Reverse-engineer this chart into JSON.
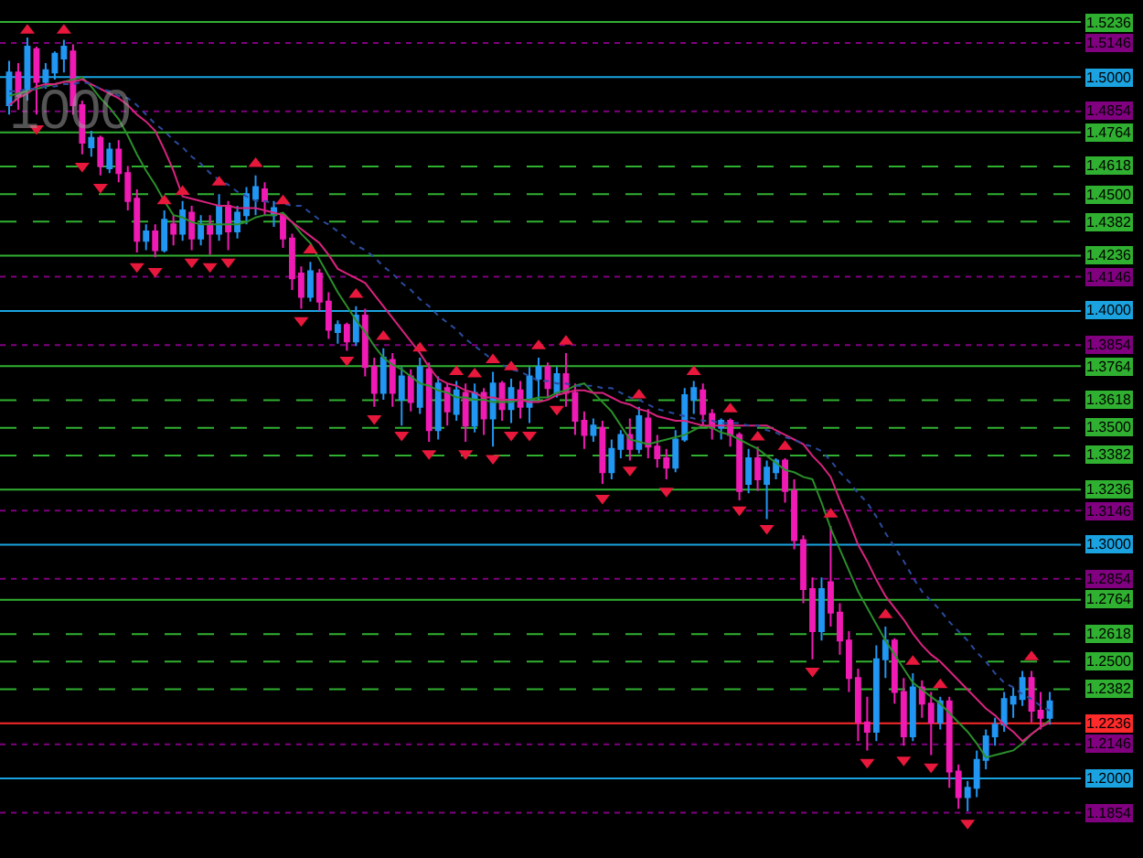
{
  "chart_data": {
    "type": "candlestick",
    "categories": [
      null,
      null,
      null,
      null,
      null,
      null,
      null,
      null,
      null,
      null,
      null,
      null,
      null,
      null,
      null,
      null,
      null,
      null,
      null,
      null,
      null,
      null,
      null,
      null,
      null,
      null,
      null,
      null,
      null,
      null,
      null,
      null,
      null,
      null,
      null,
      null,
      null,
      null,
      null,
      null,
      null,
      null,
      null,
      null,
      null,
      null,
      null,
      null,
      null,
      null,
      null,
      null,
      null,
      null,
      null,
      null,
      null,
      null,
      null,
      null,
      null,
      null,
      null,
      null,
      null,
      null,
      null,
      null,
      null,
      null,
      null,
      null,
      null,
      null,
      null,
      null,
      null,
      null,
      null,
      null,
      null,
      null,
      null,
      null,
      null,
      null,
      null,
      null,
      null,
      null,
      null,
      null,
      null,
      null,
      null,
      null,
      null,
      null,
      null,
      null,
      null,
      null,
      null,
      null,
      null,
      null,
      null,
      null,
      null,
      null,
      null,
      null,
      null,
      null,
      null
    ],
    "ohlc": [
      [
        1.488,
        1.507,
        1.484,
        1.502
      ],
      [
        1.502,
        1.506,
        1.486,
        1.492
      ],
      [
        1.494,
        1.517,
        1.49,
        1.513
      ],
      [
        1.512,
        1.513,
        1.484,
        1.498
      ],
      [
        1.498,
        1.506,
        1.495,
        1.503
      ],
      [
        1.502,
        1.511,
        1.499,
        1.51
      ],
      [
        1.508,
        1.516,
        1.502,
        1.513
      ],
      [
        1.511,
        1.514,
        1.484,
        1.488
      ],
      [
        1.488,
        1.49,
        1.467,
        1.472
      ],
      [
        1.47,
        1.477,
        1.466,
        1.474
      ],
      [
        1.474,
        1.475,
        1.458,
        1.462
      ],
      [
        1.461,
        1.472,
        1.459,
        1.469
      ],
      [
        1.469,
        1.473,
        1.455,
        1.459
      ],
      [
        1.459,
        1.462,
        1.443,
        1.447
      ],
      [
        1.448,
        1.452,
        1.425,
        1.43
      ],
      [
        1.43,
        1.437,
        1.426,
        1.434
      ],
      [
        1.434,
        1.437,
        1.423,
        1.426
      ],
      [
        1.426,
        1.443,
        1.425,
        1.439
      ],
      [
        1.437,
        1.441,
        1.428,
        1.433
      ],
      [
        1.433,
        1.447,
        1.43,
        1.443
      ],
      [
        1.442,
        1.445,
        1.426,
        1.431
      ],
      [
        1.431,
        1.441,
        1.428,
        1.437
      ],
      [
        1.437,
        1.441,
        1.424,
        1.433
      ],
      [
        1.433,
        1.45,
        1.43,
        1.445
      ],
      [
        1.445,
        1.447,
        1.426,
        1.434
      ],
      [
        1.434,
        1.445,
        1.431,
        1.442
      ],
      [
        1.441,
        1.453,
        1.437,
        1.45
      ],
      [
        1.448,
        1.458,
        1.441,
        1.453
      ],
      [
        1.452,
        1.455,
        1.441,
        1.447
      ],
      [
        1.441,
        1.447,
        1.436,
        1.444
      ],
      [
        1.441,
        1.442,
        1.427,
        1.431
      ],
      [
        1.431,
        1.433,
        1.409,
        1.414
      ],
      [
        1.416,
        1.419,
        1.401,
        1.406
      ],
      [
        1.406,
        1.421,
        1.404,
        1.417
      ],
      [
        1.416,
        1.418,
        1.4,
        1.404
      ],
      [
        1.404,
        1.408,
        1.388,
        1.392
      ],
      [
        1.391,
        1.396,
        1.386,
        1.394
      ],
      [
        1.394,
        1.395,
        1.383,
        1.387
      ],
      [
        1.387,
        1.402,
        1.385,
        1.398
      ],
      [
        1.398,
        1.401,
        1.372,
        1.376
      ],
      [
        1.376,
        1.38,
        1.359,
        1.365
      ],
      [
        1.365,
        1.384,
        1.362,
        1.38
      ],
      [
        1.379,
        1.382,
        1.359,
        1.365
      ],
      [
        1.362,
        1.376,
        1.351,
        1.372
      ],
      [
        1.372,
        1.375,
        1.357,
        1.361
      ],
      [
        1.359,
        1.38,
        1.356,
        1.376
      ],
      [
        1.375,
        1.378,
        1.344,
        1.349
      ],
      [
        1.349,
        1.372,
        1.345,
        1.369
      ],
      [
        1.367,
        1.369,
        1.351,
        1.357
      ],
      [
        1.356,
        1.37,
        1.353,
        1.366
      ],
      [
        1.365,
        1.369,
        1.344,
        1.351
      ],
      [
        1.351,
        1.369,
        1.348,
        1.365
      ],
      [
        1.365,
        1.367,
        1.347,
        1.354
      ],
      [
        1.354,
        1.374,
        1.342,
        1.369
      ],
      [
        1.369,
        1.37,
        1.353,
        1.358
      ],
      [
        1.358,
        1.371,
        1.352,
        1.367
      ],
      [
        1.366,
        1.37,
        1.354,
        1.359
      ],
      [
        1.359,
        1.376,
        1.352,
        1.372
      ],
      [
        1.371,
        1.38,
        1.362,
        1.376
      ],
      [
        1.376,
        1.378,
        1.363,
        1.367
      ],
      [
        1.365,
        1.376,
        1.363,
        1.373
      ],
      [
        1.373,
        1.382,
        1.359,
        1.365
      ],
      [
        1.365,
        1.369,
        1.347,
        1.353
      ],
      [
        1.353,
        1.357,
        1.341,
        1.347
      ],
      [
        1.347,
        1.354,
        1.344,
        1.351
      ],
      [
        1.35,
        1.353,
        1.326,
        1.331
      ],
      [
        1.331,
        1.345,
        1.328,
        1.341
      ],
      [
        1.341,
        1.349,
        1.337,
        1.347
      ],
      [
        1.347,
        1.354,
        1.336,
        1.341
      ],
      [
        1.341,
        1.359,
        1.339,
        1.355
      ],
      [
        1.354,
        1.358,
        1.337,
        1.342
      ],
      [
        1.342,
        1.347,
        1.333,
        1.337
      ],
      [
        1.337,
        1.341,
        1.328,
        1.333
      ],
      [
        1.333,
        1.349,
        1.331,
        1.345
      ],
      [
        1.345,
        1.367,
        1.344,
        1.364
      ],
      [
        1.362,
        1.37,
        1.356,
        1.367
      ],
      [
        1.366,
        1.369,
        1.351,
        1.356
      ],
      [
        1.356,
        1.358,
        1.345,
        1.35
      ],
      [
        1.35,
        1.354,
        1.345,
        1.353
      ],
      [
        1.353,
        1.354,
        1.342,
        1.347
      ],
      [
        1.347,
        1.348,
        1.319,
        1.323
      ],
      [
        1.326,
        1.341,
        1.322,
        1.337
      ],
      [
        1.337,
        1.342,
        1.323,
        1.328
      ],
      [
        1.326,
        1.336,
        1.311,
        1.333
      ],
      [
        1.331,
        1.337,
        1.328,
        1.336
      ],
      [
        1.336,
        1.337,
        1.318,
        1.323
      ],
      [
        1.323,
        1.328,
        1.298,
        1.302
      ],
      [
        1.302,
        1.304,
        1.275,
        1.281
      ],
      [
        1.281,
        1.286,
        1.251,
        1.263
      ],
      [
        1.263,
        1.286,
        1.259,
        1.281
      ],
      [
        1.284,
        1.308,
        1.265,
        1.271
      ],
      [
        1.271,
        1.275,
        1.253,
        1.259
      ],
      [
        1.259,
        1.263,
        1.237,
        1.243
      ],
      [
        1.243,
        1.247,
        1.216,
        1.224
      ],
      [
        1.224,
        1.235,
        1.212,
        1.22
      ],
      [
        1.22,
        1.257,
        1.216,
        1.251
      ],
      [
        1.251,
        1.265,
        1.243,
        1.259
      ],
      [
        1.259,
        1.26,
        1.232,
        1.237
      ],
      [
        1.237,
        1.243,
        1.214,
        1.218
      ],
      [
        1.218,
        1.245,
        1.216,
        1.239
      ],
      [
        1.239,
        1.242,
        1.226,
        1.232
      ],
      [
        1.232,
        1.237,
        1.21,
        1.224
      ],
      [
        1.224,
        1.235,
        1.221,
        1.233
      ],
      [
        1.233,
        1.235,
        1.196,
        1.203
      ],
      [
        1.203,
        1.206,
        1.187,
        1.192
      ],
      [
        1.192,
        1.199,
        1.186,
        1.196
      ],
      [
        1.196,
        1.212,
        1.192,
        1.208
      ],
      [
        1.208,
        1.221,
        1.204,
        1.218
      ],
      [
        1.218,
        1.226,
        1.214,
        1.223
      ],
      [
        1.223,
        1.237,
        1.22,
        1.234
      ],
      [
        1.232,
        1.239,
        1.226,
        1.235
      ],
      [
        1.234,
        1.246,
        1.231,
        1.243
      ],
      [
        1.243,
        1.246,
        1.224,
        1.229
      ],
      [
        1.229,
        1.237,
        1.221,
        1.226
      ],
      [
        1.226,
        1.237,
        1.223,
        1.233
      ]
    ],
    "colors": [
      "#2196f3",
      "#f01ab4",
      "#2196f3",
      "#f01ab4",
      "#2196f3",
      "#2196f3",
      "#2196f3",
      "#f01ab4",
      "#f01ab4",
      "#2196f3",
      "#f01ab4",
      "#2196f3",
      "#f01ab4",
      "#f01ab4",
      "#f01ab4",
      "#2196f3",
      "#f01ab4",
      "#2196f3",
      "#f01ab4",
      "#2196f3",
      "#f01ab4",
      "#2196f3",
      "#f01ab4",
      "#2196f3",
      "#f01ab4",
      "#2196f3",
      "#2196f3",
      "#2196f3",
      "#f01ab4",
      "#2196f3",
      "#f01ab4",
      "#f01ab4",
      "#f01ab4",
      "#2196f3",
      "#f01ab4",
      "#f01ab4",
      "#2196f3",
      "#f01ab4",
      "#2196f3",
      "#f01ab4",
      "#f01ab4",
      "#2196f3",
      "#f01ab4",
      "#2196f3",
      "#f01ab4",
      "#2196f3",
      "#f01ab4",
      "#2196f3",
      "#f01ab4",
      "#2196f3",
      "#f01ab4",
      "#2196f3",
      "#f01ab4",
      "#2196f3",
      "#f01ab4",
      "#2196f3",
      "#f01ab4",
      "#2196f3",
      "#2196f3",
      "#f01ab4",
      "#2196f3",
      "#f01ab4",
      "#f01ab4",
      "#f01ab4",
      "#2196f3",
      "#f01ab4",
      "#2196f3",
      "#2196f3",
      "#f01ab4",
      "#2196f3",
      "#f01ab4",
      "#f01ab4",
      "#f01ab4",
      "#2196f3",
      "#2196f3",
      "#2196f3",
      "#f01ab4",
      "#f01ab4",
      "#2196f3",
      "#f01ab4",
      "#f01ab4",
      "#2196f3",
      "#f01ab4",
      "#2196f3",
      "#2196f3",
      "#f01ab4",
      "#f01ab4",
      "#f01ab4",
      "#f01ab4",
      "#2196f3",
      "#f01ab4",
      "#f01ab4",
      "#f01ab4",
      "#f01ab4",
      "#f01ab4",
      "#2196f3",
      "#2196f3",
      "#f01ab4",
      "#f01ab4",
      "#2196f3",
      "#f01ab4",
      "#f01ab4",
      "#2196f3",
      "#f01ab4",
      "#f01ab4",
      "#2196f3",
      "#2196f3",
      "#2196f3",
      "#2196f3",
      "#2196f3",
      "#2196f3",
      "#2196f3",
      "#f01ab4",
      "#f01ab4",
      "#2196f3"
    ],
    "series": [
      {
        "type": "line",
        "color": "#2a8f2a",
        "values": [
          1.492,
          1.493,
          1.494,
          1.495,
          1.496,
          1.497,
          1.498,
          1.499,
          1.5,
          1.496,
          1.491,
          1.487,
          1.482,
          1.475,
          1.467,
          1.46,
          1.454,
          1.447,
          1.441,
          1.44,
          1.438,
          1.437,
          1.437,
          1.437,
          1.437,
          1.437,
          1.438,
          1.44,
          1.441,
          1.441,
          1.442,
          1.438,
          1.433,
          1.429,
          1.422,
          1.415,
          1.408,
          1.402,
          1.396,
          1.391,
          1.385,
          1.38,
          1.377,
          1.375,
          1.372,
          1.369,
          1.368,
          1.366,
          1.365,
          1.363,
          1.363,
          1.362,
          1.362,
          1.361,
          1.361,
          1.361,
          1.362,
          1.362,
          1.363,
          1.363,
          1.365,
          1.366,
          1.368,
          1.369,
          1.365,
          1.361,
          1.357,
          1.351,
          1.345,
          1.344,
          1.343,
          1.344,
          1.345,
          1.346,
          1.347,
          1.349,
          1.351,
          1.35,
          1.348,
          1.347,
          1.345,
          1.343,
          1.341,
          1.338,
          1.335,
          1.332,
          1.331,
          1.329,
          1.328,
          1.318,
          1.307,
          1.298,
          1.289,
          1.28,
          1.273,
          1.266,
          1.259,
          1.253,
          1.247,
          1.241,
          1.238,
          1.235,
          1.232,
          1.228,
          1.224,
          1.22,
          1.215,
          1.209,
          1.21,
          1.211,
          1.212,
          1.215,
          1.219,
          1.222,
          1.225
        ]
      },
      {
        "type": "line",
        "color": "#d8237e",
        "values": [
          1.488,
          1.491,
          1.493,
          1.496,
          1.497,
          1.497,
          1.498,
          1.498,
          1.499,
          1.497,
          1.495,
          1.493,
          1.491,
          1.488,
          1.484,
          1.481,
          1.477,
          1.469,
          1.46,
          1.449,
          1.448,
          1.447,
          1.446,
          1.445,
          1.445,
          1.444,
          1.444,
          1.444,
          1.443,
          1.442,
          1.441,
          1.438,
          1.435,
          1.432,
          1.429,
          1.424,
          1.418,
          1.416,
          1.414,
          1.412,
          1.407,
          1.402,
          1.397,
          1.392,
          1.387,
          1.382,
          1.376,
          1.371,
          1.369,
          1.368,
          1.366,
          1.365,
          1.363,
          1.363,
          1.362,
          1.362,
          1.362,
          1.361,
          1.361,
          1.362,
          1.364,
          1.365,
          1.366,
          1.366,
          1.365,
          1.365,
          1.363,
          1.361,
          1.36,
          1.358,
          1.357,
          1.355,
          1.354,
          1.353,
          1.353,
          1.352,
          1.351,
          1.351,
          1.351,
          1.351,
          1.351,
          1.351,
          1.351,
          1.351,
          1.349,
          1.347,
          1.345,
          1.343,
          1.338,
          1.334,
          1.329,
          1.319,
          1.31,
          1.3,
          1.293,
          1.285,
          1.278,
          1.273,
          1.268,
          1.262,
          1.257,
          1.253,
          1.25,
          1.246,
          1.242,
          1.238,
          1.234,
          1.23,
          1.227,
          1.223,
          1.22,
          1.216,
          1.219,
          1.222,
          1.224
        ]
      },
      {
        "type": "line",
        "color": "#2a4a9c",
        "line_style": "dotted",
        "values": [
          1.494,
          1.494,
          1.495,
          1.495,
          1.496,
          1.496,
          1.497,
          1.497,
          1.498,
          1.497,
          1.495,
          1.494,
          1.492,
          1.491,
          1.488,
          1.484,
          1.48,
          1.477,
          1.473,
          1.47,
          1.466,
          1.463,
          1.459,
          1.456,
          1.454,
          1.451,
          1.449,
          1.447,
          1.447,
          1.446,
          1.446,
          1.445,
          1.445,
          1.442,
          1.439,
          1.437,
          1.434,
          1.431,
          1.428,
          1.426,
          1.423,
          1.419,
          1.416,
          1.412,
          1.409,
          1.405,
          1.402,
          1.398,
          1.395,
          1.392,
          1.388,
          1.385,
          1.382,
          1.379,
          1.377,
          1.375,
          1.374,
          1.372,
          1.37,
          1.37,
          1.369,
          1.369,
          1.368,
          1.368,
          1.368,
          1.367,
          1.367,
          1.365,
          1.363,
          1.362,
          1.36,
          1.358,
          1.357,
          1.356,
          1.355,
          1.354,
          1.353,
          1.353,
          1.352,
          1.352,
          1.352,
          1.351,
          1.351,
          1.349,
          1.348,
          1.346,
          1.345,
          1.343,
          1.342,
          1.34,
          1.336,
          1.331,
          1.327,
          1.322,
          1.318,
          1.312,
          1.305,
          1.299,
          1.293,
          1.286,
          1.28,
          1.276,
          1.272,
          1.267,
          1.263,
          1.259,
          1.254,
          1.25,
          1.245,
          1.241,
          1.239,
          1.236,
          1.234,
          1.231,
          1.229
        ]
      },
      {
        "type": "scatter",
        "color": "#e8183c",
        "marker": "triangle",
        "values": [
          null,
          null,
          1.52,
          null,
          null,
          null,
          1.52,
          null,
          null,
          null,
          null,
          null,
          null,
          null,
          null,
          null,
          null,
          1.447,
          null,
          1.451,
          null,
          null,
          null,
          1.455,
          null,
          null,
          null,
          1.463,
          null,
          null,
          1.447,
          null,
          null,
          1.426,
          null,
          null,
          null,
          null,
          1.407,
          null,
          null,
          1.389,
          null,
          null,
          null,
          1.384,
          null,
          null,
          null,
          1.374,
          null,
          1.373,
          null,
          1.379,
          null,
          1.376,
          null,
          null,
          1.385,
          null,
          null,
          1.387,
          null,
          null,
          null,
          null,
          null,
          null,
          null,
          1.364,
          null,
          null,
          null,
          null,
          null,
          1.374,
          null,
          null,
          null,
          1.358,
          null,
          null,
          1.346,
          null,
          null,
          1.342,
          null,
          null,
          null,
          null,
          1.313,
          null,
          null,
          null,
          null,
          null,
          1.27,
          null,
          null,
          1.25,
          null,
          null,
          1.24,
          null,
          null,
          null,
          null,
          null,
          null,
          null,
          null,
          null,
          1.252,
          null,
          null
        ]
      },
      {
        "type": "scatter",
        "color": "#e8183c",
        "marker": "triangle-down",
        "values": [
          null,
          null,
          null,
          1.478,
          null,
          null,
          null,
          null,
          1.462,
          null,
          1.453,
          null,
          null,
          null,
          1.419,
          null,
          1.417,
          null,
          null,
          null,
          1.421,
          null,
          1.419,
          null,
          1.421,
          null,
          null,
          null,
          null,
          null,
          null,
          null,
          1.396,
          null,
          null,
          null,
          null,
          1.379,
          null,
          null,
          1.354,
          null,
          null,
          1.347,
          null,
          null,
          1.339,
          null,
          null,
          null,
          1.339,
          null,
          null,
          1.337,
          null,
          1.347,
          null,
          1.347,
          null,
          null,
          1.358,
          null,
          null,
          null,
          null,
          1.32,
          null,
          null,
          1.332,
          null,
          null,
          null,
          1.323,
          null,
          null,
          null,
          null,
          null,
          null,
          null,
          1.315,
          null,
          null,
          1.307,
          null,
          null,
          null,
          null,
          1.246,
          null,
          null,
          null,
          null,
          null,
          1.207,
          null,
          null,
          null,
          1.208,
          null,
          null,
          1.205,
          null,
          null,
          null,
          1.181,
          null,
          null,
          null,
          null,
          null,
          null,
          null,
          null,
          null
        ]
      }
    ],
    "ylim": [
      1.166,
      1.533
    ],
    "ref_lines": [
      {
        "axis": "y",
        "value": 1.5236,
        "label": "1.5236",
        "color": "#30b030",
        "line_style": "solid"
      },
      {
        "axis": "y",
        "value": 1.5146,
        "label": "1.5146",
        "color": "#800080",
        "line_style": "dotted"
      },
      {
        "axis": "y",
        "value": 1.5,
        "label": "1.5000",
        "color": "#1aa3e0",
        "line_style": "solid"
      },
      {
        "axis": "y",
        "value": 1.4854,
        "label": "1.4854",
        "color": "#800080",
        "line_style": "dotted"
      },
      {
        "axis": "y",
        "value": 1.4764,
        "label": "1.4764",
        "color": "#30b030",
        "line_style": "solid"
      },
      {
        "axis": "y",
        "value": 1.4618,
        "label": "1.4618",
        "color": "#30b030",
        "line_style": "dashed"
      },
      {
        "axis": "y",
        "value": 1.45,
        "label": "1.4500",
        "color": "#30b030",
        "line_style": "dashed"
      },
      {
        "axis": "y",
        "value": 1.4382,
        "label": "1.4382",
        "color": "#30b030",
        "line_style": "dashed"
      },
      {
        "axis": "y",
        "value": 1.4236,
        "label": "1.4236",
        "color": "#30b030",
        "line_style": "solid"
      },
      {
        "axis": "y",
        "value": 1.4146,
        "label": "1.4146",
        "color": "#800080",
        "line_style": "dotted"
      },
      {
        "axis": "y",
        "value": 1.4,
        "label": "1.4000",
        "color": "#1aa3e0",
        "line_style": "solid"
      },
      {
        "axis": "y",
        "value": 1.3854,
        "label": "1.3854",
        "color": "#800080",
        "line_style": "dotted"
      },
      {
        "axis": "y",
        "value": 1.3764,
        "label": "1.3764",
        "color": "#30b030",
        "line_style": "solid"
      },
      {
        "axis": "y",
        "value": 1.3618,
        "label": "1.3618",
        "color": "#30b030",
        "line_style": "dashed"
      },
      {
        "axis": "y",
        "value": 1.35,
        "label": "1.3500",
        "color": "#30b030",
        "line_style": "dashed"
      },
      {
        "axis": "y",
        "value": 1.3382,
        "label": "1.3382",
        "color": "#30b030",
        "line_style": "dashed"
      },
      {
        "axis": "y",
        "value": 1.3236,
        "label": "1.3236",
        "color": "#30b030",
        "line_style": "solid"
      },
      {
        "axis": "y",
        "value": 1.3146,
        "label": "1.3146",
        "color": "#800080",
        "line_style": "dotted"
      },
      {
        "axis": "y",
        "value": 1.3,
        "label": "1.3000",
        "color": "#1aa3e0",
        "line_style": "solid"
      },
      {
        "axis": "y",
        "value": 1.2854,
        "label": "1.2854",
        "color": "#800080",
        "line_style": "dotted"
      },
      {
        "axis": "y",
        "value": 1.2764,
        "label": "1.2764",
        "color": "#30b030",
        "line_style": "solid"
      },
      {
        "axis": "y",
        "value": 1.2618,
        "label": "1.2618",
        "color": "#30b030",
        "line_style": "dashed"
      },
      {
        "axis": "y",
        "value": 1.25,
        "label": "1.2500",
        "color": "#30b030",
        "line_style": "dashed"
      },
      {
        "axis": "y",
        "value": 1.2382,
        "label": "1.2382",
        "color": "#30b030",
        "line_style": "dashed"
      },
      {
        "axis": "y",
        "value": 1.2236,
        "label": "1.2236",
        "color": "#ff2a2a",
        "line_style": "solid"
      },
      {
        "axis": "y",
        "value": 1.2146,
        "label": "1.2146",
        "color": "#800080",
        "line_style": "dotted"
      },
      {
        "axis": "y",
        "value": 1.2,
        "label": "1.2000",
        "color": "#1aa3e0",
        "line_style": "solid"
      },
      {
        "axis": "y",
        "value": 1.1854,
        "label": "1.1854",
        "color": "#800080",
        "line_style": "dotted"
      }
    ],
    "annotations": [
      "1000"
    ]
  }
}
